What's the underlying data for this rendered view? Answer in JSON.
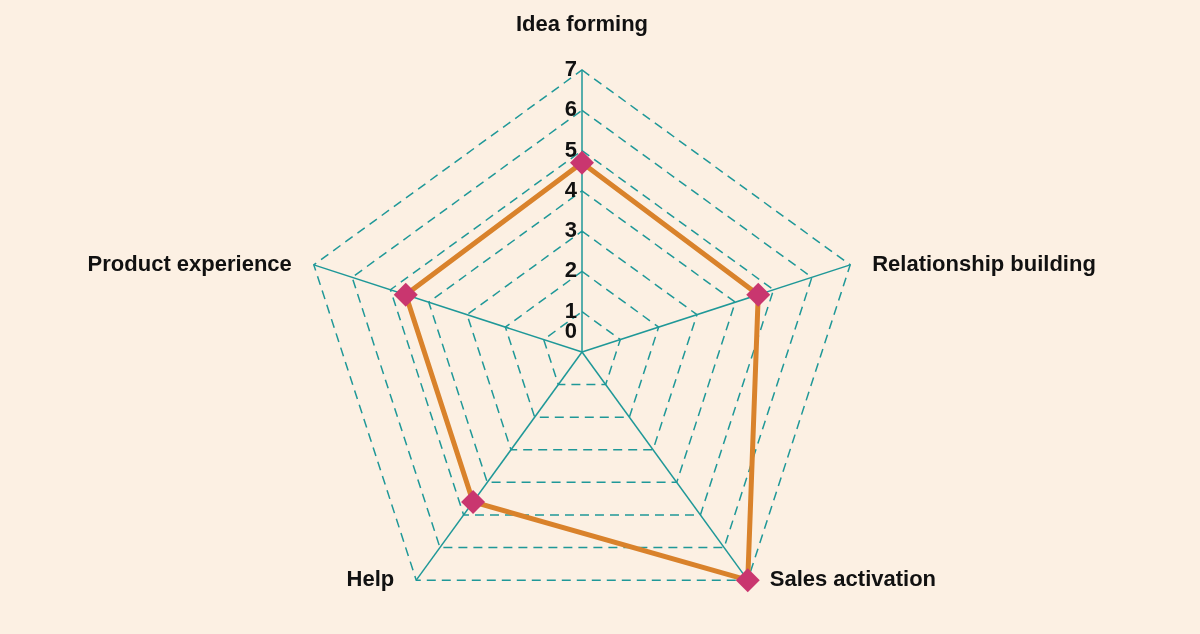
{
  "chart_data": {
    "type": "radar",
    "categories": [
      "Idea forming",
      "Relationship building",
      "Sales activation",
      "Help",
      "Product experience"
    ],
    "series": [
      {
        "color": "#d9822b",
        "colors": [
          "#c9366f",
          "#c9366f",
          "#c9366f",
          "#c9366f",
          "#c9366f"
        ],
        "values": [
          4.7,
          4.6,
          7,
          4.6,
          4.6
        ]
      }
    ],
    "ylim": [
      0,
      7
    ],
    "yticks": [
      0,
      1,
      2,
      3,
      4,
      5,
      6,
      7
    ],
    "grid": true,
    "marker": "diamond",
    "line_style": "solid"
  }
}
